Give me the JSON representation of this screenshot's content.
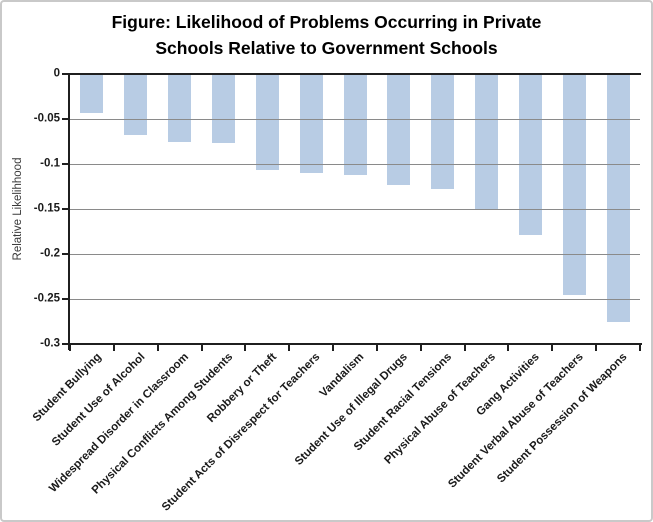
{
  "frame": {
    "background": "#FFFFFF",
    "border_color": "#C9C9C9"
  },
  "chart_data": {
    "type": "bar",
    "title": "Figure: Likelihood of Problems Occurring in Private Schools Relative to Government Schools",
    "title_lines": [
      "Figure: Likelihood of Problems Occurring in Private",
      "Schools Relative to Government Schools"
    ],
    "xlabel": "",
    "ylabel": "Relative Likelihhood",
    "categories": [
      "Student Bullying",
      "Student Use of Alcohol",
      "Widespread Disorder in Classroom",
      "Physical Conflicts Among Students",
      "Robbery or Theft",
      "Student Acts of Disrespect for Teachers",
      "Vandalism",
      "Student Use of Illegal Drugs",
      "Student Racial Tensions",
      "Physical Abuse of Teachers",
      "Gang Activities",
      "Student Verbal Abuse of Teachers",
      "Student Possession of Weapons"
    ],
    "values": [
      -0.043,
      -0.068,
      -0.075,
      -0.077,
      -0.107,
      -0.11,
      -0.112,
      -0.123,
      -0.128,
      -0.15,
      -0.179,
      -0.246,
      -0.276
    ],
    "ylim": [
      -0.3,
      0
    ],
    "yticks": [
      {
        "label": "0",
        "value": 0
      },
      {
        "label": "-0.05",
        "value": -0.05
      },
      {
        "label": "-0.1",
        "value": -0.1
      },
      {
        "label": "-0.15",
        "value": -0.15
      },
      {
        "label": "-0.2",
        "value": -0.2
      },
      {
        "label": "-0.25",
        "value": -0.25
      },
      {
        "label": "-0.3",
        "value": -0.3
      }
    ],
    "grid": true,
    "legend": false,
    "gridlines_over_bars": true,
    "colors": {
      "bar": "#B8CCE4",
      "gridline": "#8A8A8A",
      "axis": "#1F1F1F",
      "tick_label": "#1A1A1A",
      "title": "#000000"
    }
  }
}
